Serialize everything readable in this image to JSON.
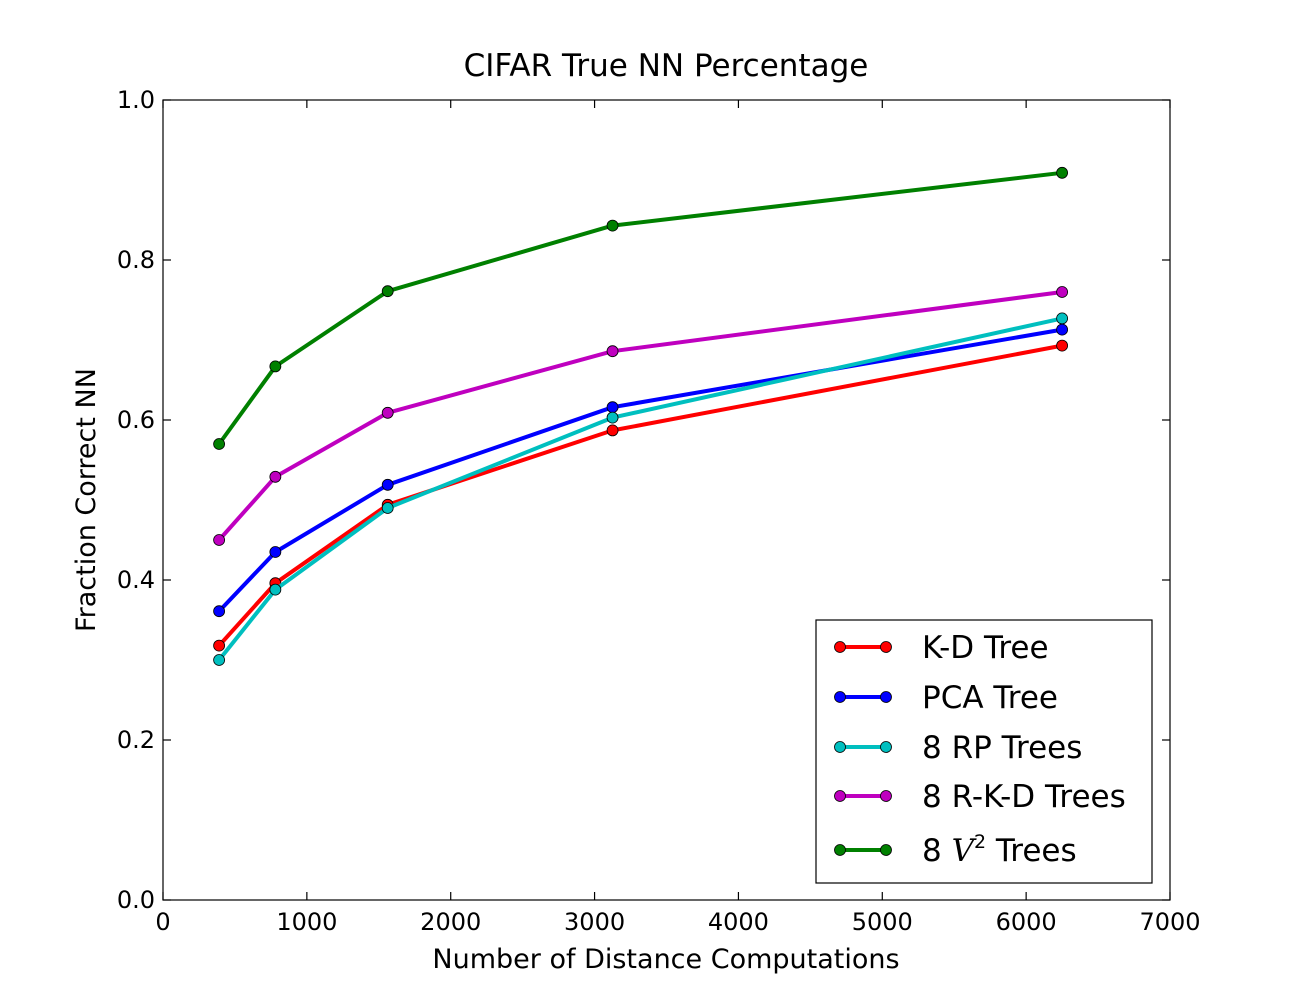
{
  "chart_data": {
    "type": "line",
    "title": "CIFAR True NN Percentage",
    "xlabel": "Number of Distance Computations",
    "ylabel": "Fraction Correct NN",
    "xlim": [
      0,
      7000
    ],
    "ylim": [
      0.0,
      1.0
    ],
    "xticks": [
      0,
      1000,
      2000,
      3000,
      4000,
      5000,
      6000,
      7000
    ],
    "yticks": [
      0.0,
      0.2,
      0.4,
      0.6,
      0.8,
      1.0
    ],
    "xtick_labels": [
      "0",
      "1000",
      "2000",
      "3000",
      "4000",
      "5000",
      "6000",
      "7000"
    ],
    "ytick_labels": [
      "0.0",
      "0.2",
      "0.4",
      "0.6",
      "0.8",
      "1.0"
    ],
    "grid": false,
    "legend_position": "bottom-right",
    "x": [
      390,
      781,
      1562,
      3125,
      6250
    ],
    "series": [
      {
        "name": "K-D Tree",
        "color": "#ff0000",
        "values": [
          0.318,
          0.396,
          0.494,
          0.587,
          0.693
        ]
      },
      {
        "name": "PCA Tree",
        "color": "#0000ff",
        "values": [
          0.361,
          0.435,
          0.519,
          0.616,
          0.713
        ]
      },
      {
        "name": "8 RP Trees",
        "color": "#00bfbf",
        "values": [
          0.3,
          0.388,
          0.49,
          0.603,
          0.727
        ]
      },
      {
        "name": "8 R-K-D Trees",
        "color": "#bf00bf",
        "values": [
          0.45,
          0.529,
          0.609,
          0.686,
          0.76
        ]
      },
      {
        "name": "8 V² Trees",
        "color": "#008000",
        "values": [
          0.57,
          0.667,
          0.761,
          0.843,
          0.909
        ]
      }
    ]
  }
}
